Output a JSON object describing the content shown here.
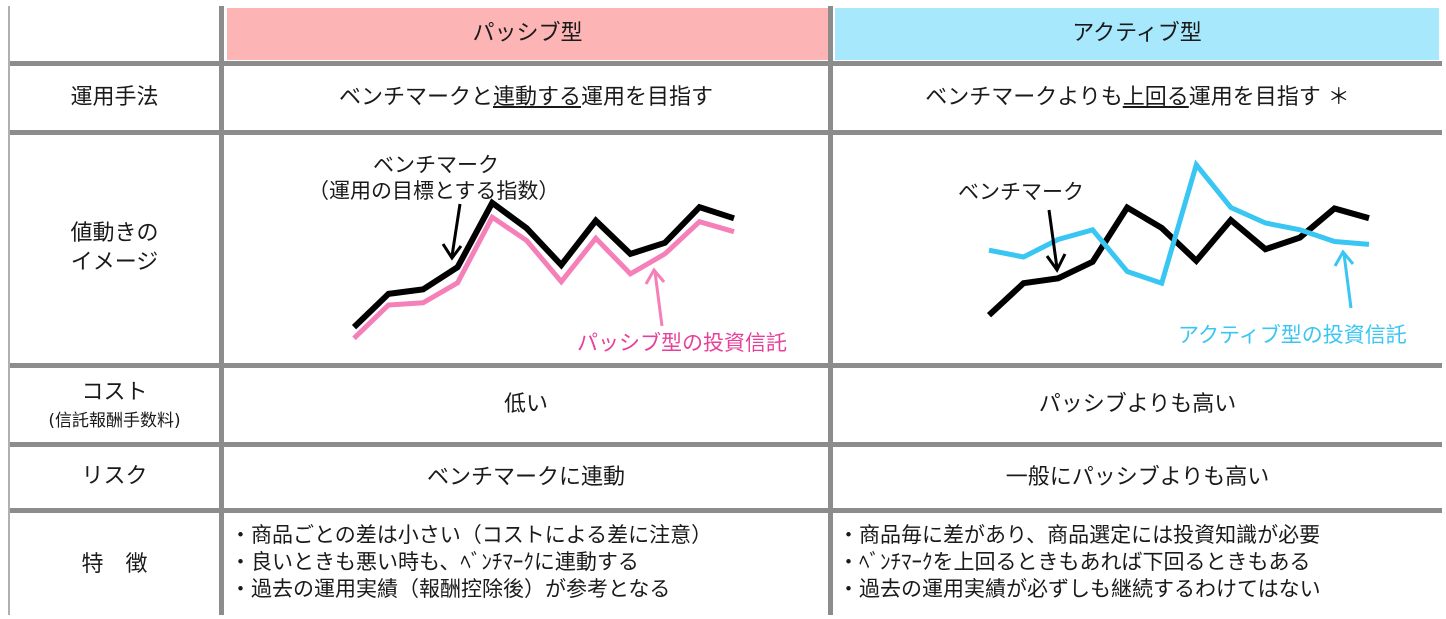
{
  "header": {
    "passive": "パッシブ型",
    "active": "アクティブ型"
  },
  "rows": {
    "method": {
      "label": "運用手法",
      "passive": {
        "pre": "ベンチマークと",
        "underlined": "連動する",
        "post": "運用を目指す"
      },
      "active": {
        "pre": "ベンチマークよりも",
        "underlined": "上回る",
        "post": "運用を目指す ＊"
      }
    },
    "image": {
      "label_line1": "値動きの",
      "label_line2": "イメージ",
      "passive": {
        "benchmark_label_line1": "ベンチマーク",
        "benchmark_label_line2": "（運用の目標とする指数）",
        "fund_label": "パッシブ型の投資信託"
      },
      "active": {
        "benchmark_label": "ベンチマーク",
        "fund_label": "アクティブ型の投資信託"
      }
    },
    "cost": {
      "label_line1": "コスト",
      "label_line2": "(信託報酬手数料)",
      "passive": "低い",
      "active": "パッシブよりも高い"
    },
    "risk": {
      "label": "リスク",
      "passive": "ベンチマークに連動",
      "active": "一般にパッシブよりも高い"
    },
    "features": {
      "label": "特　徴",
      "passive": [
        "・商品ごとの差は小さい（コストによる差に注意）",
        "・良いときも悪い時も、ﾍﾞﾝﾁﾏｰｸに連動する",
        "・過去の運用実績（報酬控除後）が参考となる"
      ],
      "active": [
        "・商品毎に差があり、商品選定には投資知識が必要",
        "・ﾍﾞﾝﾁﾏｰｸを上回るときもあれば下回るときもある",
        "・過去の運用実績が必ずしも継続するわけてはない"
      ]
    }
  },
  "colors": {
    "passive_header": "#fdb4b4",
    "active_header": "#a8e8fc",
    "passive_fund_line": "#f57fb8",
    "passive_fund_label": "#e8409a",
    "active_fund_line": "#39c6f2",
    "benchmark_line": "#000000",
    "grid": "#8c8c8c"
  },
  "chart_data": [
    {
      "type": "line",
      "x": [
        0,
        1,
        2,
        3,
        4,
        5,
        6,
        7,
        8,
        9,
        10,
        11
      ],
      "series": [
        {
          "name": "ベンチマーク",
          "values": [
            6,
            36,
            40,
            60,
            118,
            95,
            62,
            102,
            72,
            82,
            114,
            104
          ]
        },
        {
          "name": "パッシブ型の投資信託",
          "values": [
            -4,
            26,
            28,
            46,
            105,
            84,
            47,
            86,
            54,
            72,
            101,
            92
          ]
        }
      ]
    },
    {
      "type": "line",
      "x": [
        0,
        1,
        2,
        3,
        4,
        5,
        6,
        7,
        8,
        9,
        10,
        11
      ],
      "series": [
        {
          "name": "ベンチマーク",
          "values": [
            0,
            33,
            38,
            55,
            111,
            90,
            56,
            98,
            68,
            80,
            110,
            100
          ]
        },
        {
          "name": "アクティブ型の投資信託",
          "values": [
            67,
            60,
            78,
            88,
            45,
            33,
            155,
            111,
            95,
            88,
            76,
            73
          ]
        }
      ]
    }
  ]
}
